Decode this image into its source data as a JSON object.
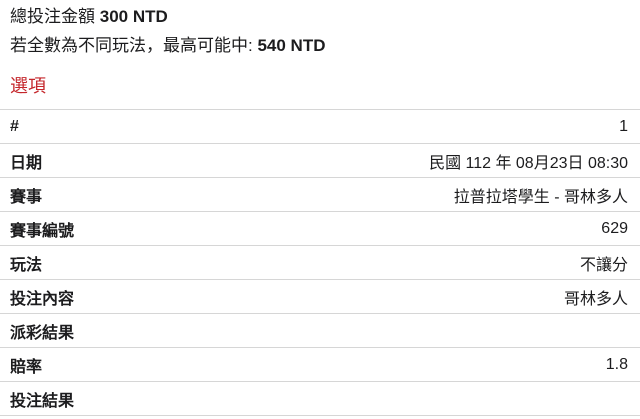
{
  "theme": {
    "accent_red": "#c4262b",
    "divider": "#d6d6d6",
    "text": "#1c1c1e",
    "background": "#ffffff"
  },
  "summary": {
    "total_stake_label": "總投注金額",
    "total_stake_value": "300 NTD",
    "max_win_label": "若全數為不同玩法，最高可能中:",
    "max_win_value": "540 NTD"
  },
  "section": {
    "title": "選項"
  },
  "selection_table": {
    "rows": [
      {
        "label": "#",
        "value": "1"
      },
      {
        "label": "日期",
        "value": "民國 112 年 08月23日 08:30"
      },
      {
        "label": "賽事",
        "value": "拉普拉塔學生 - 哥林多人"
      },
      {
        "label": "賽事編號",
        "value": "629"
      },
      {
        "label": "玩法",
        "value": "不讓分"
      },
      {
        "label": "投注內容",
        "value": "哥林多人"
      },
      {
        "label": "派彩結果",
        "value": ""
      },
      {
        "label": "賠率",
        "value": "1.8"
      },
      {
        "label": "投注結果",
        "value": ""
      }
    ]
  }
}
